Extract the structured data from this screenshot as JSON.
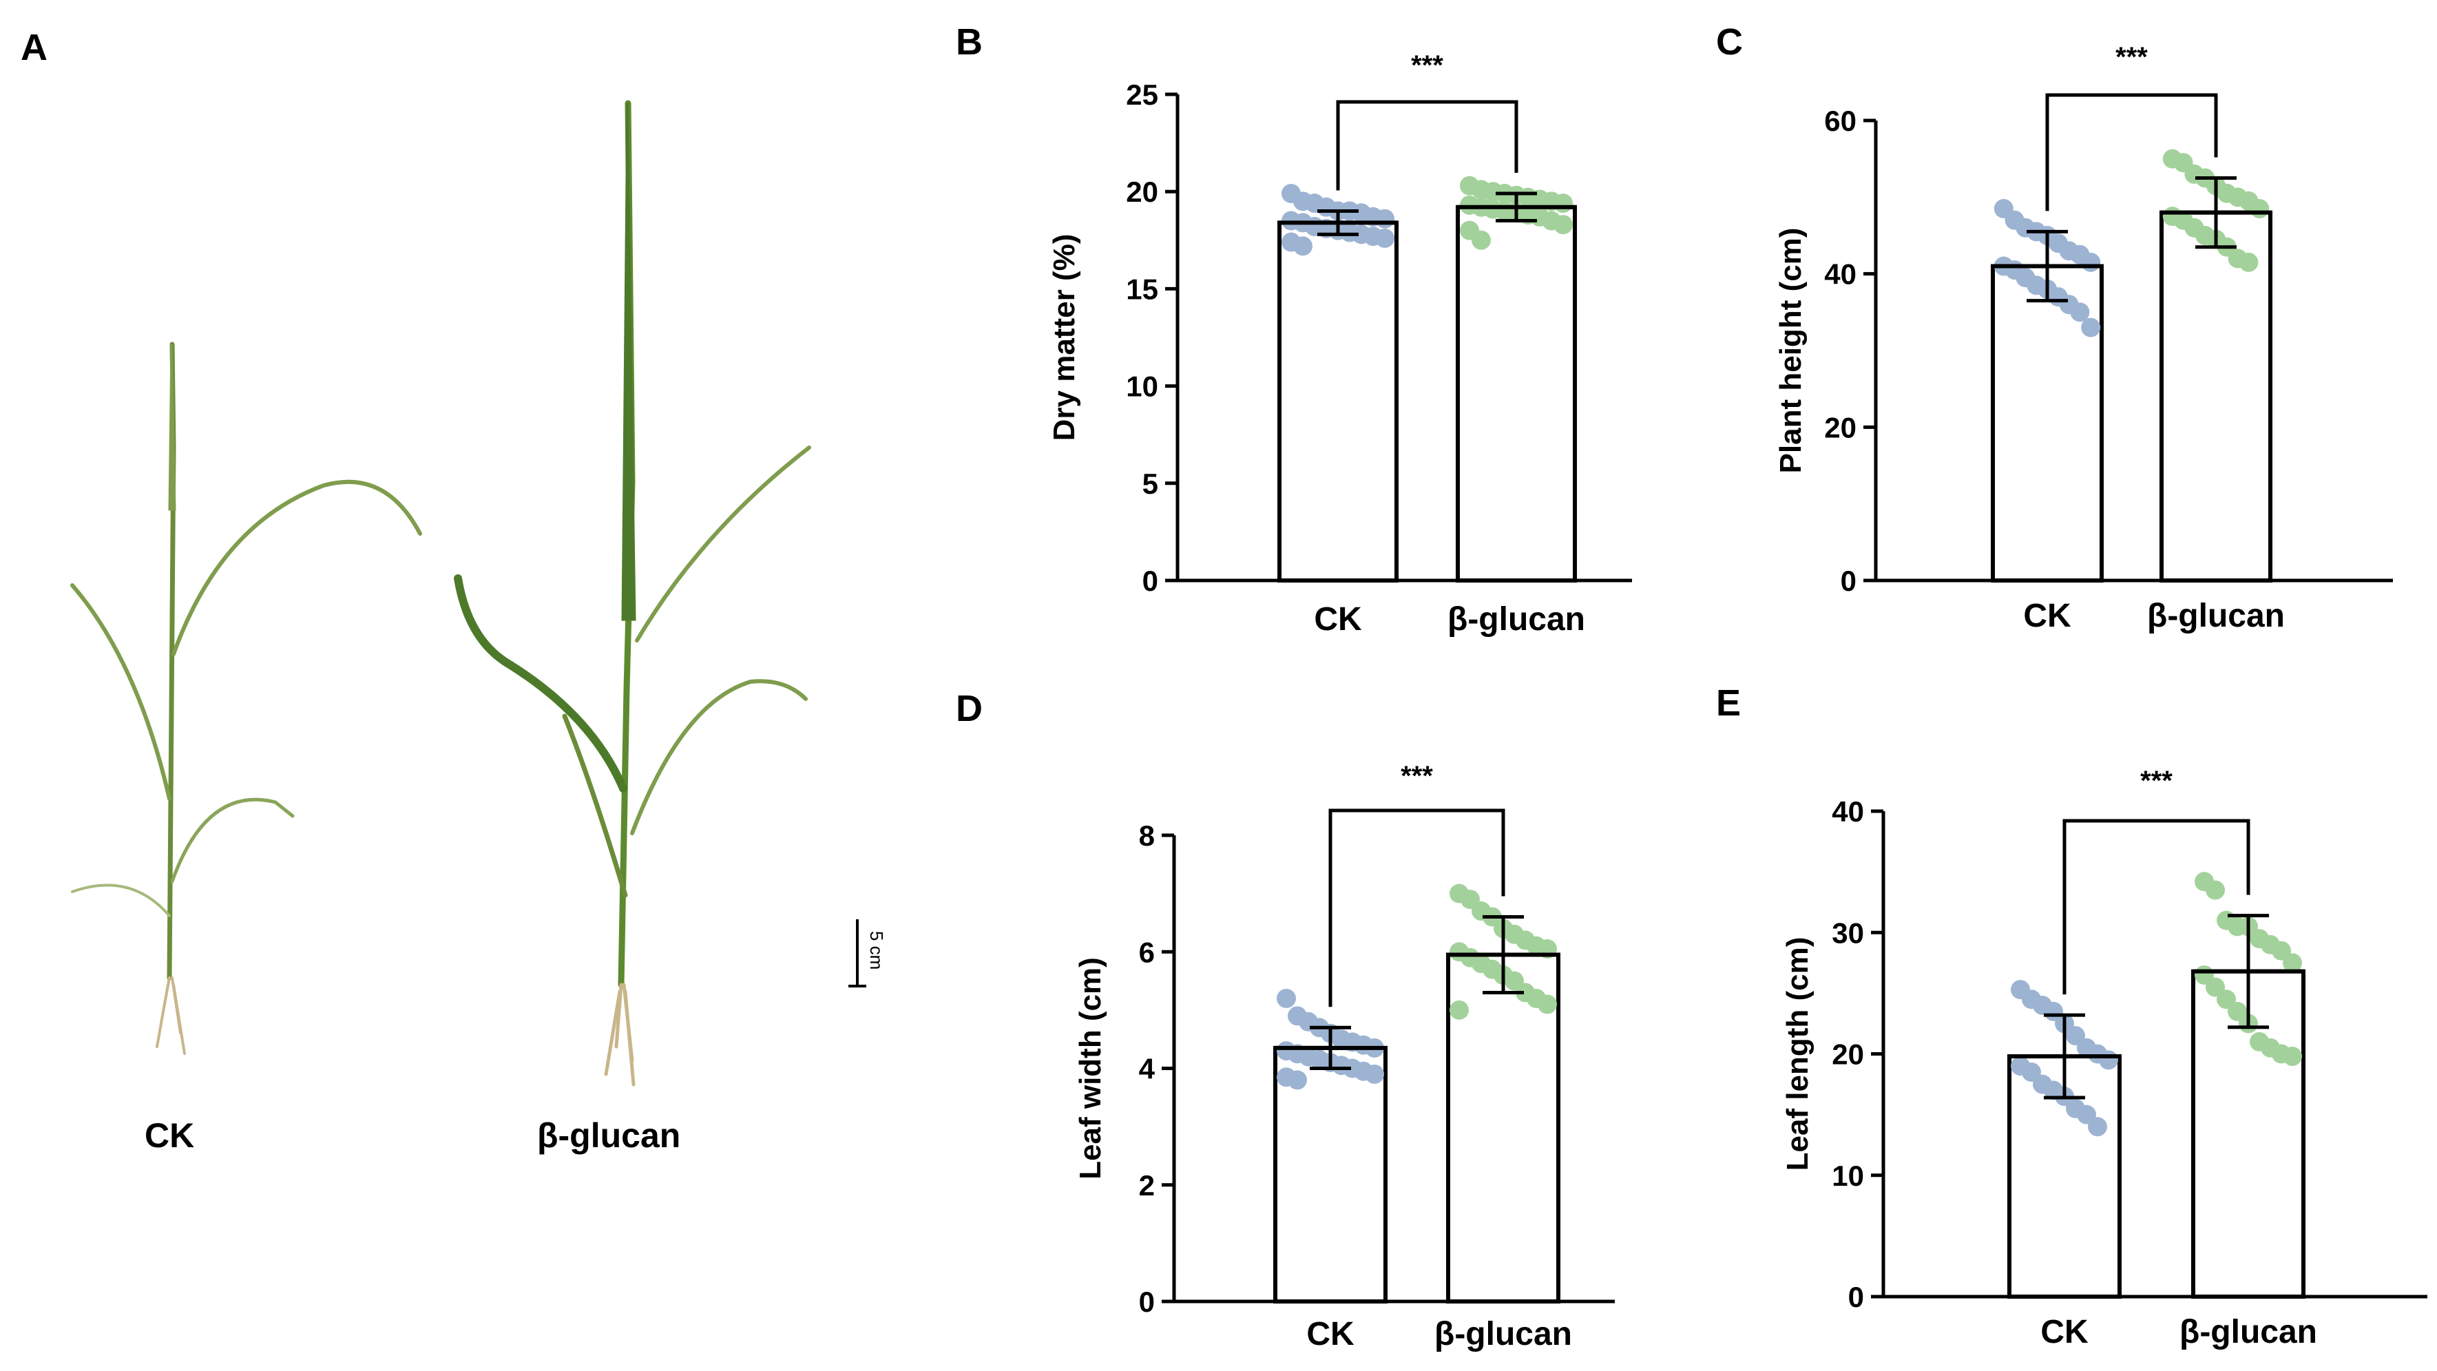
{
  "panels": {
    "a": "A",
    "b": "B",
    "c": "C",
    "d": "D",
    "e": "E"
  },
  "photo": {
    "left_label": "CK",
    "right_label": "β-glucan",
    "scale_bar_label": "5 cm"
  },
  "colors": {
    "ck_points": "#9db3d2",
    "glucan_points": "#a3d19b",
    "plant_leaf": "#7f9d4d",
    "plant_leaf_dark": "#4d7a2a"
  },
  "chart_data": [
    {
      "id": "B",
      "type": "bar",
      "categories": [
        "CK",
        "β-glucan"
      ],
      "values": [
        18.4,
        19.2
      ],
      "sd": [
        0.6,
        0.7
      ],
      "ylabel": "Dry matter (%)",
      "ylim": [
        0,
        25
      ],
      "yticks": [
        "0",
        "5",
        "10",
        "15",
        "20",
        "25"
      ],
      "significance": "***",
      "points": [
        [
          19.9,
          19.5,
          19.4,
          19.2,
          19.0,
          19.0,
          18.9,
          18.7,
          18.6,
          18.5,
          18.4,
          18.2,
          18.1,
          18.0,
          17.9,
          17.8,
          17.7,
          17.6,
          17.4,
          17.2
        ],
        [
          20.3,
          20.1,
          20.0,
          19.9,
          19.8,
          19.7,
          19.6,
          19.5,
          19.4,
          19.3,
          19.2,
          19.1,
          19.0,
          18.9,
          18.8,
          18.7,
          18.5,
          18.3,
          18.0,
          17.5
        ]
      ]
    },
    {
      "id": "C",
      "type": "bar",
      "categories": [
        "CK",
        "β-glucan"
      ],
      "values": [
        41,
        48
      ],
      "sd": [
        4.5,
        4.5
      ],
      "ylabel": "Plant height (cm)",
      "ylim": [
        0,
        60
      ],
      "yticks": [
        "0",
        "20",
        "40",
        "60"
      ],
      "significance": "***",
      "points": [
        [
          48.5,
          47.0,
          46.0,
          45.5,
          45.0,
          44.0,
          43.0,
          42.5,
          41.5,
          41.0,
          40.5,
          39.5,
          38.5,
          38.0,
          37.0,
          36.0,
          35.0,
          33.0
        ],
        [
          55.0,
          54.5,
          53.0,
          52.5,
          51.5,
          50.5,
          50.0,
          49.5,
          48.5,
          47.5,
          47.0,
          46.0,
          45.0,
          44.5,
          43.5,
          42.0,
          41.5
        ]
      ]
    },
    {
      "id": "D",
      "type": "bar",
      "categories": [
        "CK",
        "β-glucan"
      ],
      "values": [
        4.35,
        5.95
      ],
      "sd": [
        0.35,
        0.65
      ],
      "ylabel": "Leaf width (cm)",
      "ylim": [
        0,
        8
      ],
      "yticks": [
        "0",
        "2",
        "4",
        "6",
        "8"
      ],
      "significance": "***",
      "points": [
        [
          5.2,
          4.9,
          4.8,
          4.7,
          4.6,
          4.5,
          4.45,
          4.4,
          4.35,
          4.3,
          4.25,
          4.2,
          4.15,
          4.1,
          4.05,
          4.0,
          3.95,
          3.9,
          3.85,
          3.8
        ],
        [
          7.0,
          6.9,
          6.7,
          6.6,
          6.4,
          6.3,
          6.2,
          6.1,
          6.05,
          6.0,
          5.9,
          5.8,
          5.7,
          5.6,
          5.5,
          5.3,
          5.2,
          5.1,
          5.0
        ]
      ]
    },
    {
      "id": "E",
      "type": "bar",
      "categories": [
        "CK",
        "β-glucan"
      ],
      "values": [
        19.8,
        26.8
      ],
      "sd": [
        3.4,
        4.6
      ],
      "ylabel": "Leaf length (cm)",
      "ylim": [
        0,
        40
      ],
      "yticks": [
        "0",
        "10",
        "20",
        "30",
        "40"
      ],
      "significance": "***",
      "points": [
        [
          25.3,
          24.5,
          24.0,
          23.5,
          22.5,
          21.5,
          20.5,
          20.0,
          19.5,
          19.0,
          18.5,
          17.5,
          17.0,
          16.5,
          15.5,
          15.0,
          14.0
        ],
        [
          34.2,
          33.5,
          31.0,
          30.5,
          30.5,
          29.5,
          29.0,
          28.5,
          27.5,
          26.5,
          25.5,
          24.5,
          23.5,
          22.5,
          21.0,
          20.5,
          20.0,
          19.8
        ]
      ]
    }
  ]
}
